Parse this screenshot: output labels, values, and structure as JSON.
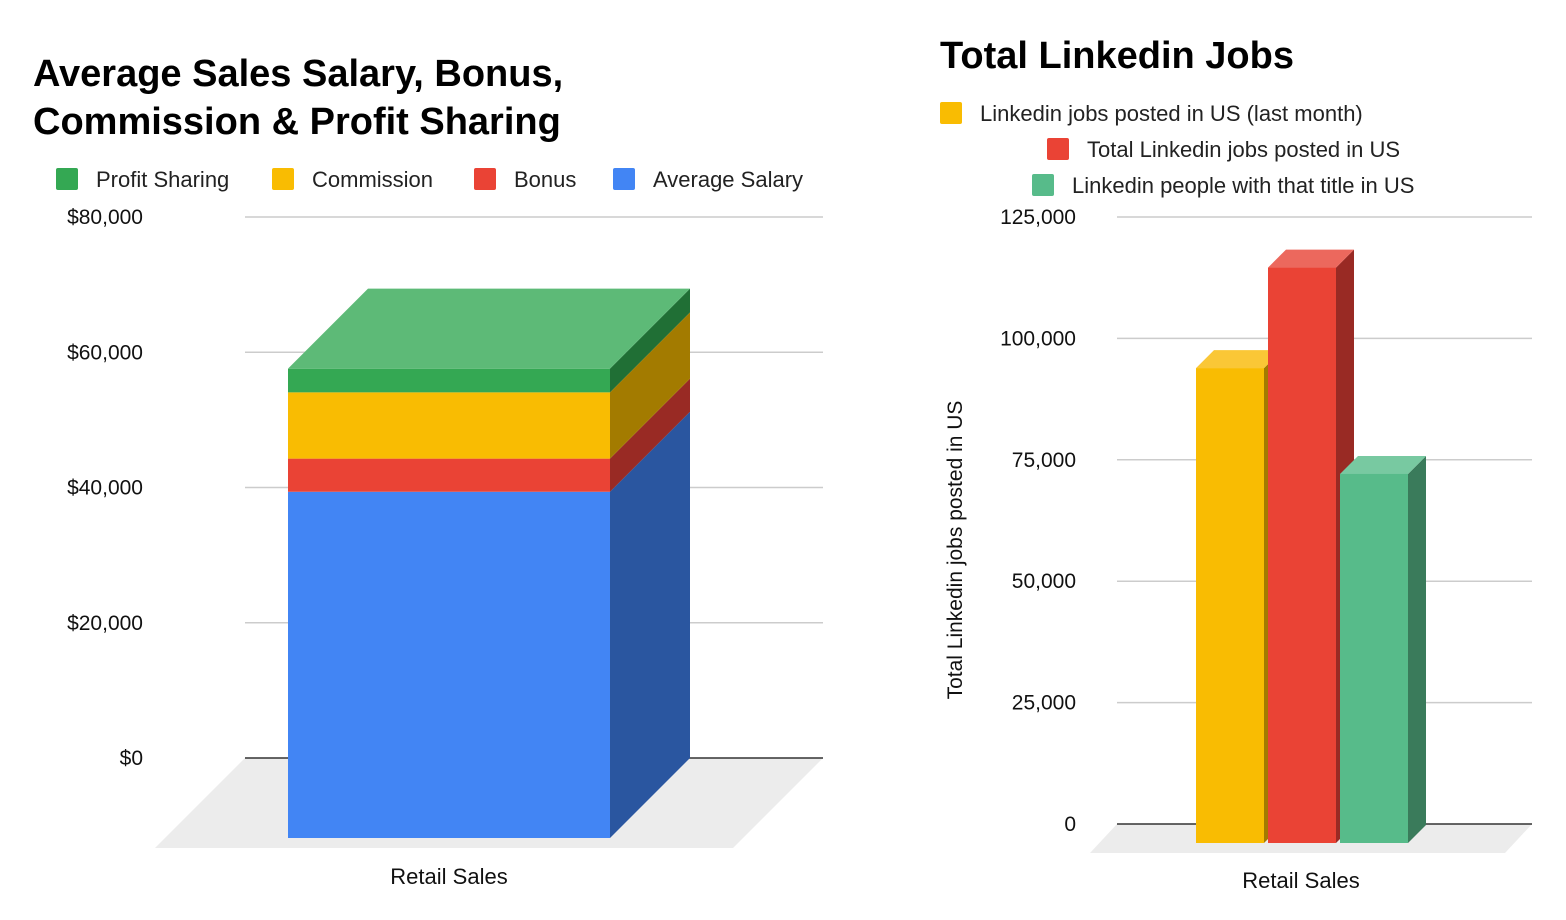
{
  "chart_data": [
    {
      "type": "bar",
      "stacked": true,
      "three_d": true,
      "title": "Average Sales Salary, Bonus, Commission & Profit Sharing",
      "title_lines": [
        "Average Sales Salary, Bonus,",
        "Commission & Profit Sharing"
      ],
      "categories": [
        "Retail Sales"
      ],
      "series": [
        {
          "name": "Average Salary",
          "values": [
            51200
          ],
          "color": "#4285f4",
          "side": "#2a56a0"
        },
        {
          "name": "Bonus",
          "values": [
            4900
          ],
          "color": "#ea4335",
          "side": "#992a24"
        },
        {
          "name": "Commission",
          "values": [
            9800
          ],
          "color": "#f9bc02",
          "side": "#a37b00"
        },
        {
          "name": "Profit Sharing",
          "values": [
            3500
          ],
          "color": "#34a853",
          "side": "#206f35",
          "top": "#5dba77"
        }
      ],
      "legend_order": [
        "Profit Sharing",
        "Commission",
        "Bonus",
        "Average Salary"
      ],
      "legend": "top",
      "ylim": [
        0,
        80000
      ],
      "yticks": [
        "$0",
        "$20,000",
        "$40,000",
        "$60,000",
        "$80,000"
      ],
      "ytick_values": [
        0,
        20000,
        40000,
        60000,
        80000
      ],
      "grid": true,
      "xlabel": "",
      "ylabel": ""
    },
    {
      "type": "bar",
      "three_d": true,
      "title": "Total Linkedin Jobs",
      "categories": [
        "Retail Sales"
      ],
      "series": [
        {
          "name": "Linkedin jobs posted in US (last month)",
          "values": [
            97800
          ],
          "color": "#f9bc02",
          "side": "#a37b00",
          "top": "#fac736"
        },
        {
          "name": "Total Linkedin jobs posted in US",
          "values": [
            118500
          ],
          "color": "#ea4335",
          "side": "#992a24",
          "top": "#ec685d"
        },
        {
          "name": "Linkedin people with that title in US",
          "values": [
            76000
          ],
          "color": "#57bb8a",
          "side": "#3a7b5b",
          "top": "#78c9a1"
        }
      ],
      "legend": "top",
      "ylim": [
        0,
        125000
      ],
      "yticks": [
        "0",
        "25,000",
        "50,000",
        "75,000",
        "100,000",
        "125,000"
      ],
      "ytick_values": [
        0,
        25000,
        50000,
        75000,
        100000,
        125000
      ],
      "grid": true,
      "xlabel": "",
      "ylabel": "Total Linkedin jobs posted in US"
    }
  ]
}
